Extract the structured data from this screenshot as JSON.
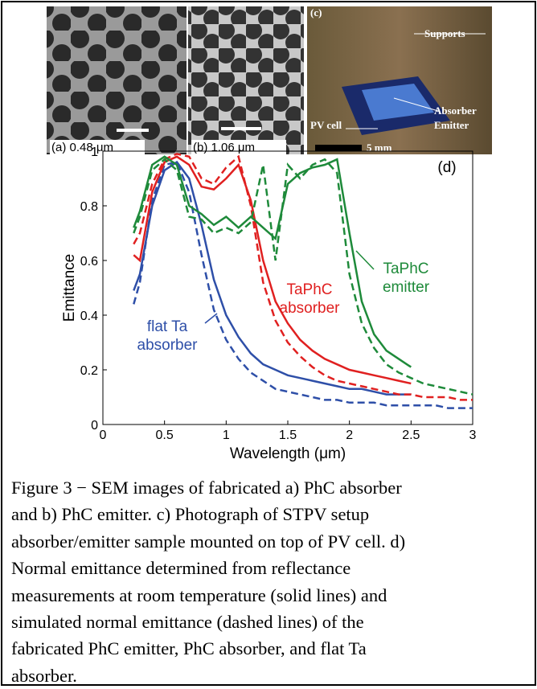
{
  "figure": {
    "panels": [
      {
        "label": "(a) 0.48 μm"
      },
      {
        "label": "(b) 1.06 μm"
      },
      {
        "label": "(c)",
        "notes": [
          "Supports",
          "PV cell",
          "Absorber",
          "Emitter",
          "5 mm"
        ]
      }
    ],
    "caption": [
      "Figure 3 − SEM  images of fabricated a) PhC absorber",
      "and b) PhC emitter. c) Photograph of STPV setup",
      "absorber/emitter sample mounted on top of  PV cell. d)",
      "Normal emittance determined from reflectance",
      "measurements at room temperature (solid lines) and",
      "simulated normal emittance (dashed lines) of the",
      "fabricated PhC emitter, PhC absorber, and flat Ta",
      "absorber."
    ]
  },
  "chart_data": {
    "type": "line",
    "xlabel": "Wavelength (μm)",
    "ylabel": "Emittance",
    "xlim": [
      0,
      3
    ],
    "ylim": [
      0,
      1
    ],
    "xticks": [
      0,
      0.5,
      1,
      1.5,
      2,
      2.5,
      3
    ],
    "yticks": [
      0,
      0.2,
      0.4,
      0.6,
      0.8,
      1
    ],
    "x": [
      0.25,
      0.3,
      0.4,
      0.5,
      0.6,
      0.7,
      0.8,
      0.9,
      1.0,
      1.1,
      1.2,
      1.3,
      1.4,
      1.5,
      1.6,
      1.7,
      1.8,
      1.9,
      2.0,
      2.1,
      2.2,
      2.3,
      2.4,
      2.5,
      2.6,
      2.7,
      2.8,
      2.9,
      3.0
    ],
    "series": [
      {
        "color": "#2e4fa8",
        "style": "solid",
        "values": [
          0.49,
          0.55,
          0.8,
          0.93,
          0.96,
          0.9,
          0.73,
          0.53,
          0.4,
          0.32,
          0.26,
          0.22,
          0.2,
          0.18,
          0.17,
          0.16,
          0.15,
          0.14,
          0.13,
          0.13,
          0.12,
          0.11,
          0.11,
          0.11,
          null,
          null,
          null,
          null,
          null
        ]
      },
      {
        "color": "#2e4fa8",
        "style": "dashed",
        "values": [
          0.44,
          0.52,
          0.82,
          0.95,
          0.96,
          0.85,
          0.62,
          0.42,
          0.31,
          0.24,
          0.19,
          0.16,
          0.13,
          0.12,
          0.11,
          0.1,
          0.09,
          0.09,
          0.08,
          0.08,
          0.08,
          0.07,
          0.07,
          0.07,
          0.07,
          0.07,
          0.06,
          0.06,
          0.06
        ]
      },
      {
        "color": "#e02020",
        "style": "solid",
        "values": [
          0.62,
          0.6,
          0.85,
          0.96,
          0.98,
          0.95,
          0.87,
          0.86,
          0.9,
          0.95,
          0.82,
          0.6,
          0.45,
          0.37,
          0.31,
          0.27,
          0.24,
          0.22,
          0.2,
          0.19,
          0.18,
          0.17,
          0.16,
          0.15,
          null,
          null,
          null,
          null,
          null
        ]
      },
      {
        "color": "#e02020",
        "style": "dashed",
        "values": [
          0.66,
          0.7,
          0.88,
          0.97,
          0.99,
          0.98,
          0.9,
          0.88,
          0.94,
          0.98,
          0.8,
          0.52,
          0.38,
          0.3,
          0.25,
          0.21,
          0.18,
          0.16,
          0.15,
          0.14,
          0.13,
          0.12,
          0.11,
          0.11,
          0.1,
          0.1,
          0.1,
          0.09,
          0.09
        ]
      },
      {
        "color": "#1e8a3a",
        "style": "solid",
        "values": [
          0.72,
          0.78,
          0.95,
          0.98,
          0.95,
          0.8,
          0.77,
          0.73,
          0.76,
          0.72,
          0.76,
          0.72,
          0.68,
          0.88,
          0.92,
          0.94,
          0.95,
          0.97,
          0.7,
          0.45,
          0.33,
          0.27,
          0.24,
          0.21,
          null,
          null,
          null,
          null,
          null
        ]
      },
      {
        "color": "#1e8a3a",
        "style": "dashed",
        "values": [
          0.7,
          0.76,
          0.93,
          0.97,
          0.93,
          0.76,
          0.75,
          0.7,
          0.72,
          0.7,
          0.74,
          0.95,
          0.6,
          0.95,
          0.9,
          0.95,
          0.97,
          0.92,
          0.55,
          0.37,
          0.28,
          0.22,
          0.19,
          0.17,
          0.15,
          0.14,
          0.13,
          0.12,
          0.11
        ]
      }
    ],
    "annotations": [
      {
        "text": [
          "(d)"
        ],
        "color": "#000000"
      },
      {
        "text": [
          "TaPhC",
          "absorber"
        ],
        "color": "#e02020"
      },
      {
        "text": [
          "TaPhC",
          "emitter"
        ],
        "color": "#1e8a3a"
      },
      {
        "text": [
          "flat Ta",
          "absorber"
        ],
        "color": "#2e4fa8"
      }
    ]
  }
}
